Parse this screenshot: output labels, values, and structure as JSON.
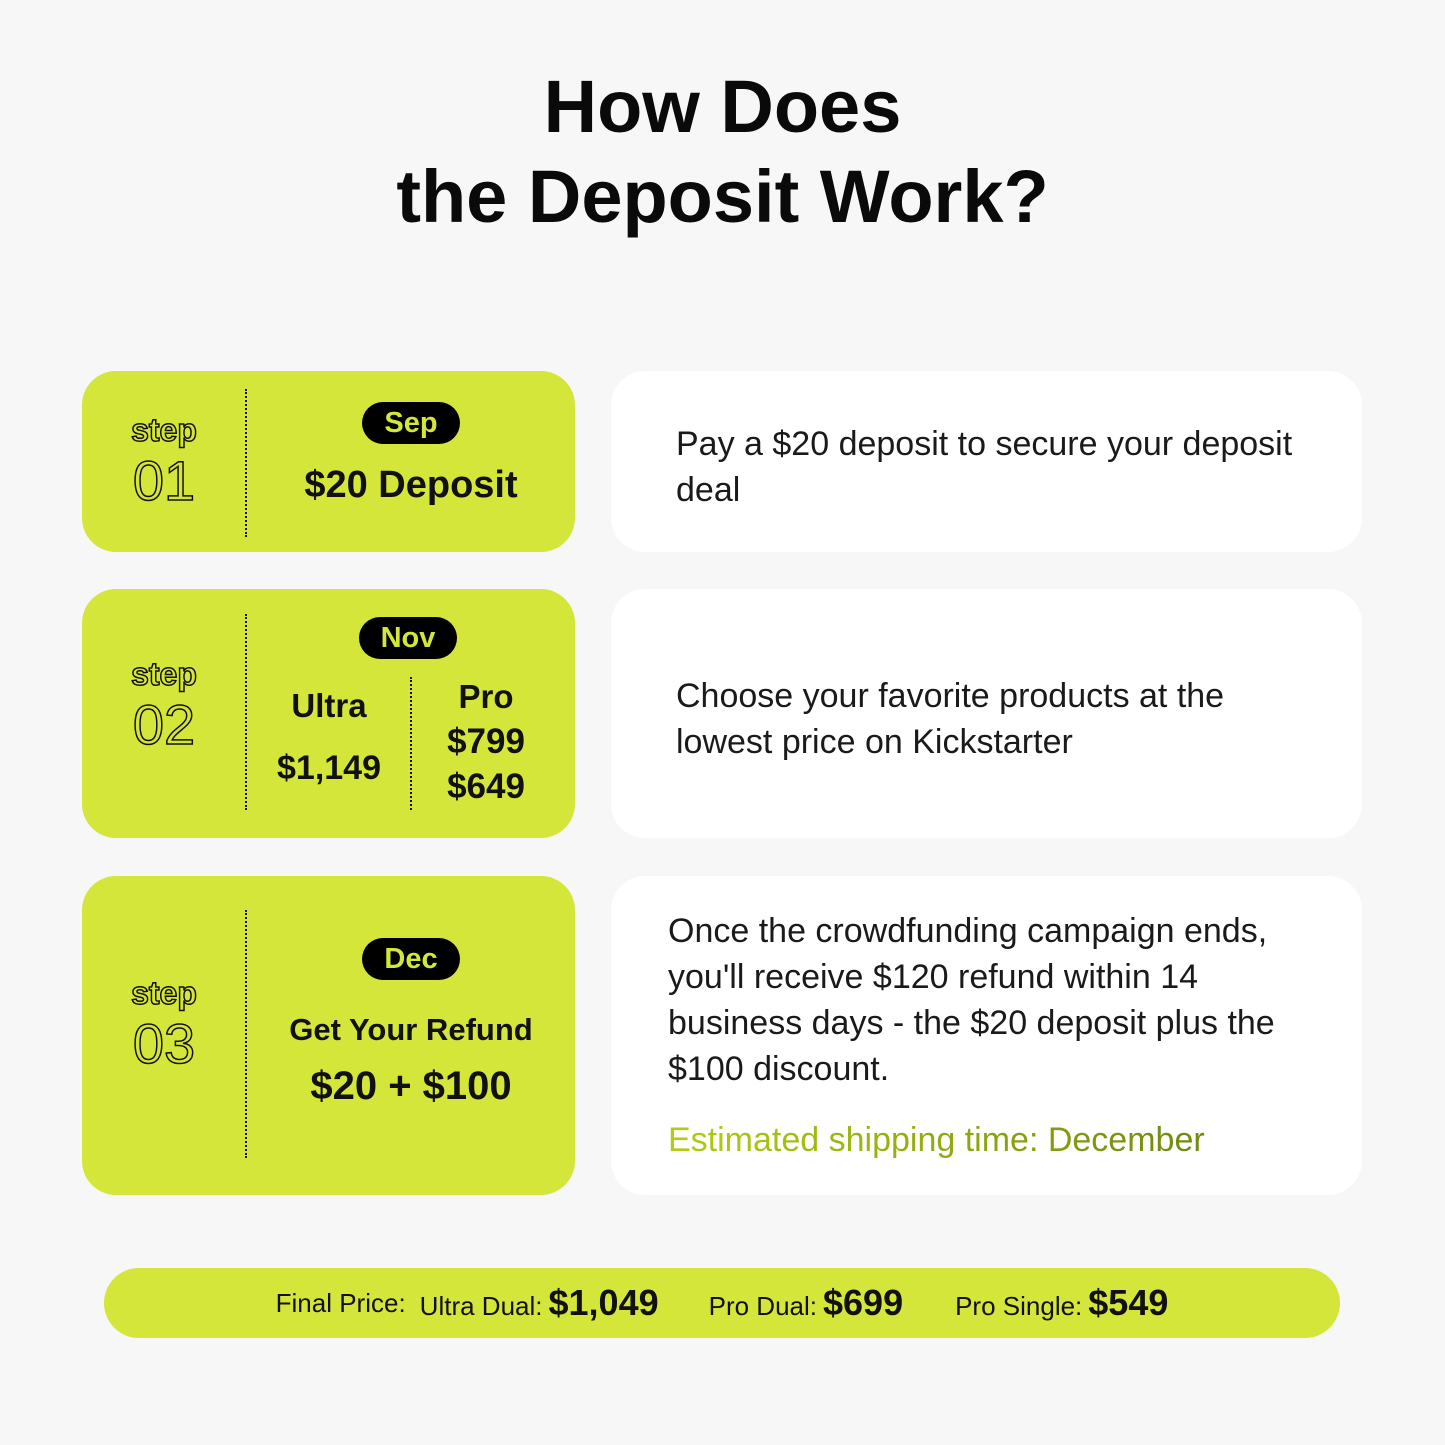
{
  "title": {
    "line1": "How Does",
    "line2": "the Deposit Work?"
  },
  "steps": [
    {
      "word": "step",
      "number": "01",
      "month": "Sep",
      "amount": "$20",
      "amount_label": "Deposit",
      "description": "Pay a $20 deposit to secure your deposit deal"
    },
    {
      "word": "step",
      "number": "02",
      "month": "Nov",
      "ultra_label": "Ultra",
      "ultra_price": "$1,149",
      "pro_label": "Pro",
      "pro_price_1": "$799",
      "pro_price_2": "$649",
      "description": "Choose your favorite products at the lowest price on Kickstarter"
    },
    {
      "word": "step",
      "number": "03",
      "month": "Dec",
      "headline": "Get Your Refund",
      "amount": "$20 + $100",
      "description": "Once the crowdfunding campaign ends, you'll receive $120 refund within 14 business days - the $20 deposit plus the $100 discount.",
      "shipping": "Estimated shipping time: December"
    }
  ],
  "final": {
    "label": "Final Price:",
    "items": [
      {
        "name": "Ultra Dual:",
        "price": "$1,049"
      },
      {
        "name": "Pro Dual:",
        "price": "$699"
      },
      {
        "name": "Pro Single:",
        "price": "$549"
      }
    ]
  },
  "colors": {
    "accent": "#d4e63a",
    "background": "#f7f7f7"
  }
}
